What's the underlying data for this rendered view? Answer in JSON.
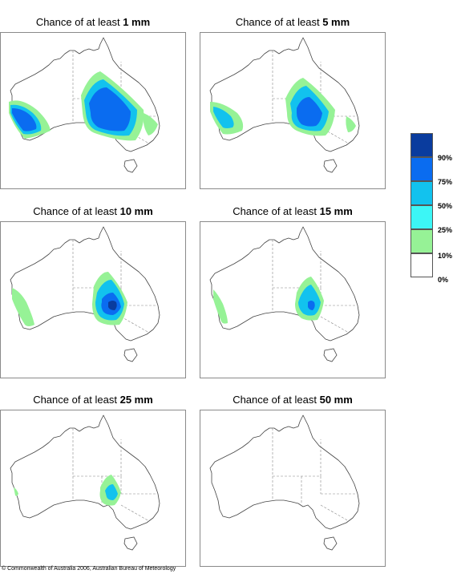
{
  "panels": [
    {
      "title_prefix": "Chance of at least ",
      "amount": "1 mm"
    },
    {
      "title_prefix": "Chance of at least ",
      "amount": "5 mm"
    },
    {
      "title_prefix": "Chance of at least ",
      "amount": "10 mm"
    },
    {
      "title_prefix": "Chance of at least ",
      "amount": "15 mm"
    },
    {
      "title_prefix": "Chance of at least ",
      "amount": "25 mm"
    },
    {
      "title_prefix": "Chance of at least ",
      "amount": "50 mm"
    }
  ],
  "legend": {
    "labels": [
      "90%",
      "75%",
      "50%",
      "25%",
      "10%",
      "0%"
    ],
    "colors": [
      "#0a3c9e",
      "#0a6cf0",
      "#12c2ee",
      "#3cf6f6",
      "#96f296",
      "#ffffff"
    ]
  },
  "copyright": "© Commonwealth of Australia 2006, Australian Bureau of Meteorology"
}
